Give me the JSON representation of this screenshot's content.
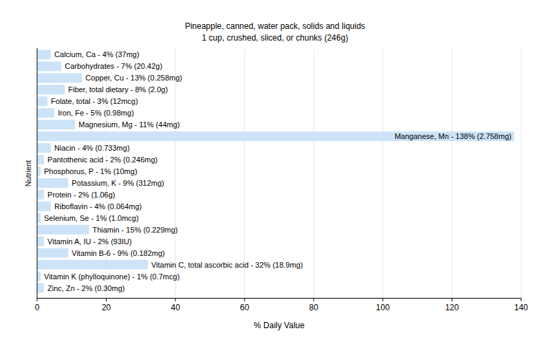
{
  "chart_data": {
    "type": "bar",
    "orientation": "horizontal",
    "title": "Pineapple, canned, water pack, solids and liquids",
    "subtitle": "1 cup, crushed, sliced, or chunks (246g)",
    "x_label": "% Daily Value",
    "y_label": "Nutrient",
    "categories": [
      "Calcium, Ca - 4% (37mg)",
      "Carbohydrates - 7% (20.42g)",
      "Copper, Cu - 13% (0.258mg)",
      "Fiber, total dietary - 8% (2.0g)",
      "Folate, total - 3% (12mcg)",
      "Iron, Fe - 5% (0.98mg)",
      "Magnesium, Mg - 11% (44mg)",
      "Manganese, Mn - 138% (2.758mg)",
      "Niacin - 4% (0.733mg)",
      "Pantothenic acid - 2% (0.246mg)",
      "Phosphorus, P - 1% (10mg)",
      "Potassium, K - 9% (312mg)",
      "Protein - 2% (1.06g)",
      "Riboflavin - 4% (0.064mg)",
      "Selenium, Se - 1% (1.0mcg)",
      "Thiamin - 15% (0.229mg)",
      "Vitamin A, IU - 2% (93IU)",
      "Vitamin B-6 - 9% (0.182mg)",
      "Vitamin C, total ascorbic acid - 32% (18.9mg)",
      "Vitamin K (phylloquinone) - 1% (0.7mcg)",
      "Zinc, Zn - 2% (0.30mg)"
    ],
    "values": [
      4,
      7,
      13,
      8,
      3,
      5,
      11,
      138,
      4,
      2,
      1,
      9,
      2,
      4,
      1,
      15,
      2,
      9,
      32,
      1,
      2
    ],
    "color": "#cce3f8",
    "xlim": [
      0,
      140
    ],
    "xticks": [
      0,
      20,
      40,
      60,
      80,
      100,
      120,
      140
    ],
    "grid": true
  }
}
